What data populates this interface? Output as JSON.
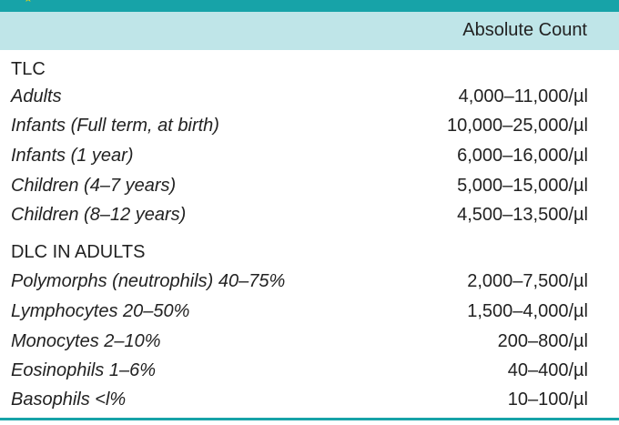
{
  "table": {
    "column_header": "Absolute Count",
    "sections": [
      {
        "title": "TLC",
        "rows": [
          {
            "label": "Adults",
            "value": "4,000–11,000/µl"
          },
          {
            "label": "Infants (Full term, at birth)",
            "value": "10,000–25,000/µl"
          },
          {
            "label": "Infants (1 year)",
            "value": "6,000–16,000/µl"
          },
          {
            "label": "Children (4–7 years)",
            "value": "5,000–15,000/µl"
          },
          {
            "label": "Children (8–12 years)",
            "value": "4,500–13,500/µl"
          }
        ]
      },
      {
        "title": "DLC IN ADULTS",
        "rows": [
          {
            "label": "Polymorphs (neutrophils) 40–75%",
            "value": "2,000–7,500/µl"
          },
          {
            "label": "Lymphocytes 20–50%",
            "value": "1,500–4,000/µl"
          },
          {
            "label": "Monocytes 2–10%",
            "value": "200–800/µl"
          },
          {
            "label": "Eosinophils 1–6%",
            "value": "40–400/µl"
          },
          {
            "label": "Basophils <l%",
            "value": "10–100/µl"
          }
        ]
      }
    ]
  },
  "colors": {
    "accent": "#17a3a8",
    "header_band": "#bfe5e8"
  }
}
